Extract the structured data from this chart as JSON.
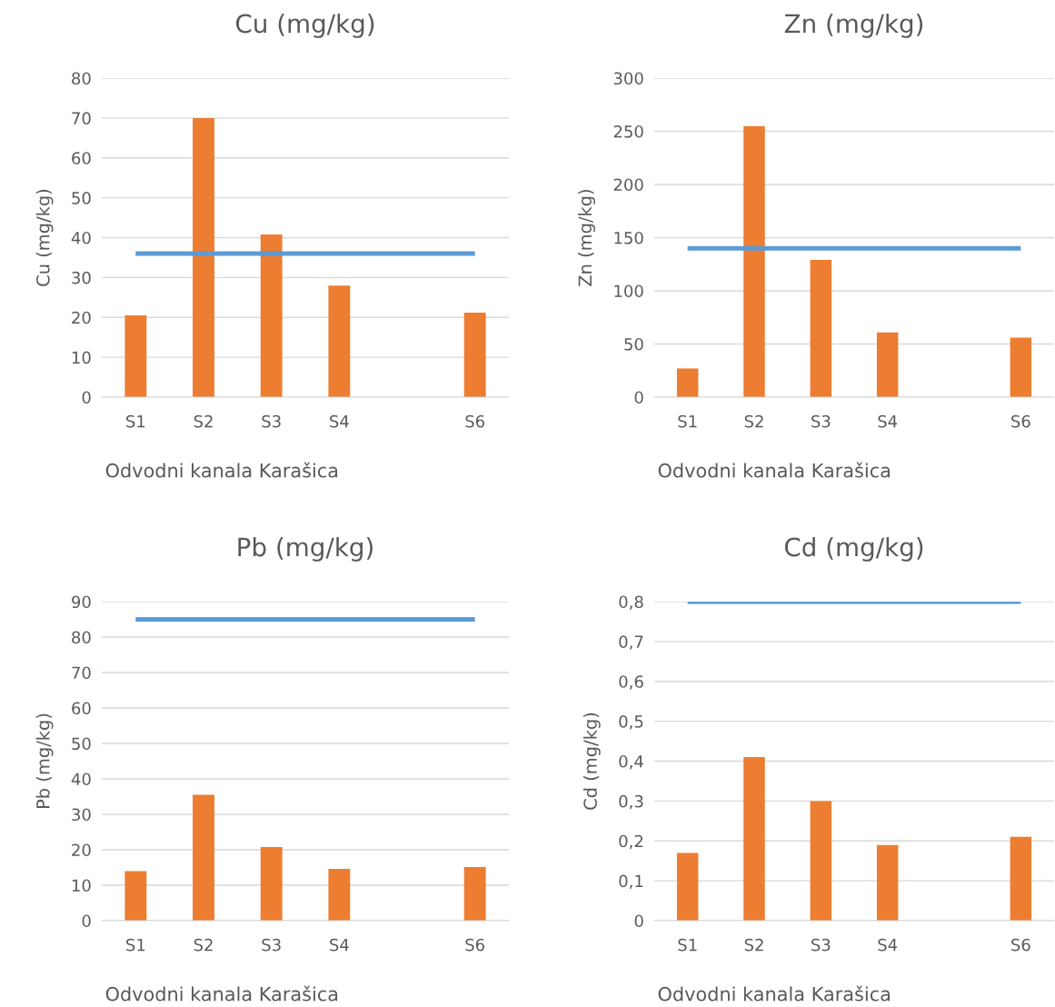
{
  "chart_data": [
    {
      "type": "bar",
      "title": "Cu (mg/kg)",
      "ylabel": "Cu (mg/kg)",
      "xlabel": "Odvodni kanala Karašica",
      "categories": [
        "S1",
        "S2",
        "S3",
        "S4",
        null,
        "S6"
      ],
      "grid": "y",
      "ylim": [
        0,
        80
      ],
      "yticks": [
        0,
        10,
        20,
        30,
        40,
        50,
        60,
        70,
        80
      ],
      "series": [
        {
          "color": "#ed7d31",
          "values": [
            20.5,
            70,
            40.8,
            28,
            null,
            21.2
          ]
        },
        {
          "type": "line",
          "color": "#5b9bd5",
          "values": [
            36,
            36,
            36,
            36,
            36,
            36
          ]
        }
      ]
    },
    {
      "type": "bar",
      "title": "Zn (mg/kg)",
      "ylabel": "Zn (mg/kg)",
      "xlabel": "Odvodni kanala Karašica",
      "categories": [
        "S1",
        "S2",
        "S3",
        "S4",
        null,
        "S6"
      ],
      "grid": "y",
      "ylim": [
        0,
        300
      ],
      "yticks": [
        0,
        50,
        100,
        150,
        200,
        250,
        300
      ],
      "series": [
        {
          "color": "#ed7d31",
          "values": [
            27,
            255,
            129,
            61,
            null,
            56
          ]
        },
        {
          "type": "line",
          "color": "#5b9bd5",
          "values": [
            140,
            140,
            140,
            140,
            140,
            140
          ]
        }
      ]
    },
    {
      "type": "bar",
      "title": "Pb (mg/kg)",
      "ylabel": "Pb (mg/kg)",
      "xlabel": "Odvodni kanala Karašica",
      "categories": [
        "S1",
        "S2",
        "S3",
        "S4",
        null,
        "S6"
      ],
      "grid": "y",
      "ylim": [
        0,
        90
      ],
      "yticks": [
        0,
        10,
        20,
        30,
        40,
        50,
        60,
        70,
        80,
        90
      ],
      "series": [
        {
          "color": "#ed7d31",
          "values": [
            14,
            35.5,
            20.8,
            14.6,
            null,
            15.1
          ]
        },
        {
          "type": "line",
          "color": "#5b9bd5",
          "values": [
            85,
            85,
            85,
            85,
            85,
            85
          ]
        }
      ]
    },
    {
      "type": "bar",
      "title": "Cd (mg/kg)",
      "ylabel": "Cd (mg/kg)",
      "xlabel": "Odvodni kanala Karašica",
      "categories": [
        "S1",
        "S2",
        "S3",
        "S4",
        null,
        "S6"
      ],
      "grid": "y",
      "ylim": [
        0,
        0.8
      ],
      "yticks": [
        0,
        {
          "value": 0.1,
          "label": "0,1"
        },
        {
          "value": 0.2,
          "label": "0,2"
        },
        {
          "value": 0.3,
          "label": "0,3"
        },
        {
          "value": 0.4,
          "label": "0,4"
        },
        {
          "value": 0.5,
          "label": "0,5"
        },
        {
          "value": 0.6,
          "label": "0,6"
        },
        {
          "value": 0.7,
          "label": "0,7"
        },
        {
          "value": 0.8,
          "label": "0,8"
        }
      ],
      "series": [
        {
          "color": "#ed7d31",
          "values": [
            0.17,
            0.41,
            0.3,
            0.19,
            null,
            0.21
          ]
        },
        {
          "type": "line",
          "color": "#5b9bd5",
          "values": [
            0.8,
            0.8,
            0.8,
            0.8,
            0.8,
            0.8
          ]
        }
      ]
    }
  ]
}
